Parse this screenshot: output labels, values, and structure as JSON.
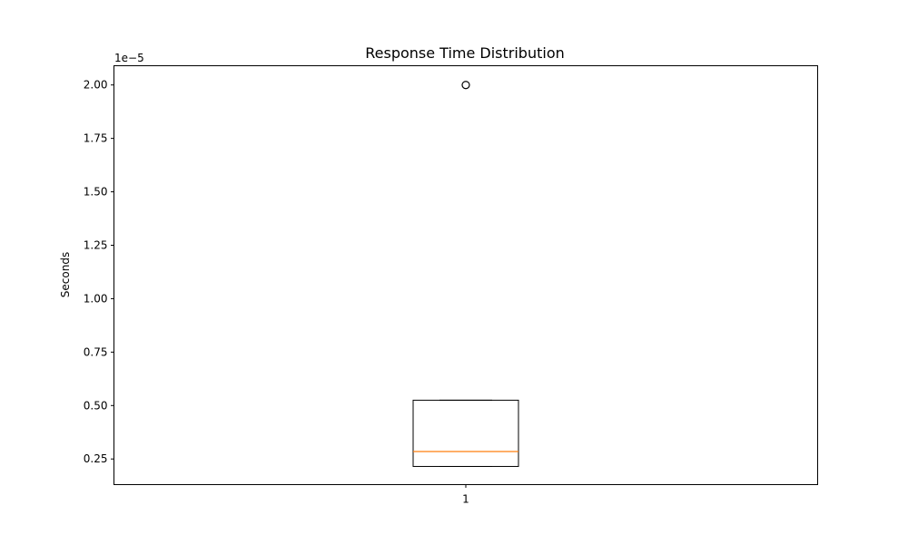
{
  "chart_data": {
    "type": "box",
    "title": "Response Time Distribution",
    "xlabel": "",
    "ylabel": "Seconds",
    "y_offset_label": "1e−5",
    "y_scale_factor": 1e-05,
    "ylim": [
      1.3e-06,
      2.09e-05
    ],
    "y_ticks": [
      2.5e-06,
      5e-06,
      7.5e-06,
      1e-05,
      1.25e-05,
      1.5e-05,
      1.75e-05,
      2e-05
    ],
    "y_tick_labels": [
      "0.25",
      "0.50",
      "0.75",
      "1.00",
      "1.25",
      "1.50",
      "1.75",
      "2.00"
    ],
    "categories": [
      "1"
    ],
    "boxes": [
      {
        "category": "1",
        "whisker_low": 2.15e-06,
        "q1": 2.15e-06,
        "median": 2.85e-06,
        "q3": 5.25e-06,
        "whisker_high": 5.25e-06,
        "outliers": [
          2e-05
        ]
      }
    ],
    "grid": false,
    "colors": {
      "box": "#000000",
      "median": "#ff7f0e",
      "outlier": "#000000"
    }
  }
}
